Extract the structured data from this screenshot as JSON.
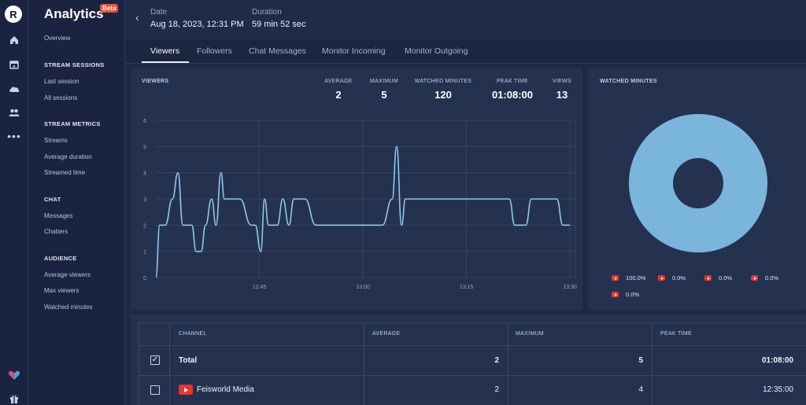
{
  "app": {
    "title": "Analytics",
    "badge": "Beta",
    "logo_letter": "R"
  },
  "rail": {
    "icons": [
      "home-icon",
      "calendar-icon",
      "cloud-icon",
      "users-icon",
      "more-icon",
      "heart-icon",
      "gift-icon"
    ]
  },
  "sidebar": {
    "overview": "Overview",
    "stream_sessions": {
      "heading": "STREAM SESSIONS",
      "items": [
        "Last session",
        "All sessions"
      ]
    },
    "stream_metrics": {
      "heading": "STREAM METRICS",
      "items": [
        "Streams",
        "Average duration",
        "Streamed time"
      ]
    },
    "chat": {
      "heading": "CHAT",
      "items": [
        "Messages",
        "Chatters"
      ]
    },
    "audience": {
      "heading": "AUDIENCE",
      "items": [
        "Average viewers",
        "Max viewers",
        "Watched minutes"
      ]
    }
  },
  "header": {
    "date_label": "Date",
    "date_value": "Aug 18, 2023, 12:31 PM",
    "duration_label": "Duration",
    "duration_value": "59 min 52 sec"
  },
  "tabs": [
    "Viewers",
    "Followers",
    "Chat Messages",
    "Monitor Incoming",
    "Monitor Outgoing"
  ],
  "viewers_card": {
    "title": "VIEWERS",
    "stats": [
      {
        "label": "AVERAGE",
        "value": "2"
      },
      {
        "label": "MAXIMUM",
        "value": "5"
      },
      {
        "label": "WATCHED MINUTES",
        "value": "120"
      },
      {
        "label": "PEAK TIME",
        "value": "01:08:00"
      },
      {
        "label": "VIEWS",
        "value": "13"
      }
    ]
  },
  "watched_card": {
    "title": "WATCHED MINUTES",
    "legend": [
      "100.0%",
      "0.0%",
      "0.0%",
      "0.0%",
      "0.0%"
    ]
  },
  "colors": {
    "line": "#8cc8ec",
    "donut": "#7ab5dc",
    "youtube": "#e8362d",
    "accent": "#e2553e"
  },
  "chart_data": [
    {
      "type": "line",
      "title": "VIEWERS",
      "x_ticks": [
        "12:45",
        "13:00",
        "13:15",
        "13:30"
      ],
      "y_ticks": [
        "0",
        "1",
        "2",
        "3",
        "4",
        "5",
        "6"
      ],
      "ylim": [
        0,
        6
      ],
      "xlim_minutes": [
        0,
        60
      ],
      "grid": true,
      "series": [
        {
          "x": [
            0,
            0.7,
            1.7,
            3,
            4,
            4.9,
            6.5,
            7.3,
            8.2,
            9,
            10.1,
            10.9,
            11.8,
            12.4,
            13.2,
            14.2,
            15.2,
            17.3,
            18,
            19,
            19.7,
            20.4,
            21.4,
            22,
            23,
            24.1,
            25,
            26.2,
            27,
            29,
            29.8,
            30.8,
            41,
            42.8,
            43.6,
            44.5,
            45.2,
            46.2,
            63,
            64,
            65,
            67,
            68,
            72.6,
            73.7,
            75
          ],
          "y": [
            0,
            2,
            2,
            3,
            4,
            2,
            2,
            1,
            1,
            2,
            3,
            2,
            4,
            3,
            3,
            3,
            3,
            2,
            2,
            1,
            3,
            2,
            2,
            2,
            3,
            2,
            3,
            3,
            3,
            2,
            2,
            2,
            2,
            3,
            5,
            2,
            3,
            3,
            3,
            3,
            2,
            2,
            3,
            3,
            2,
            2
          ]
        }
      ]
    },
    {
      "type": "pie",
      "title": "WATCHED MINUTES",
      "values": [
        100.0,
        0.0,
        0.0,
        0.0,
        0.0
      ],
      "labels": [
        "100.0%",
        "0.0%",
        "0.0%",
        "0.0%",
        "0.0%"
      ]
    }
  ],
  "table": {
    "columns": [
      "CHANNEL",
      "AVERAGE",
      "MAXIMUM",
      "PEAK TIME"
    ],
    "rows": [
      {
        "checked": true,
        "check_mark": "✓",
        "channel": "Total",
        "average": "2",
        "maximum": "5",
        "peak_time": "01:08:00"
      },
      {
        "checked": false,
        "check_mark": "",
        "channel": "Feisworld Media",
        "average": "2",
        "maximum": "4",
        "peak_time": "12:35:00"
      }
    ]
  }
}
